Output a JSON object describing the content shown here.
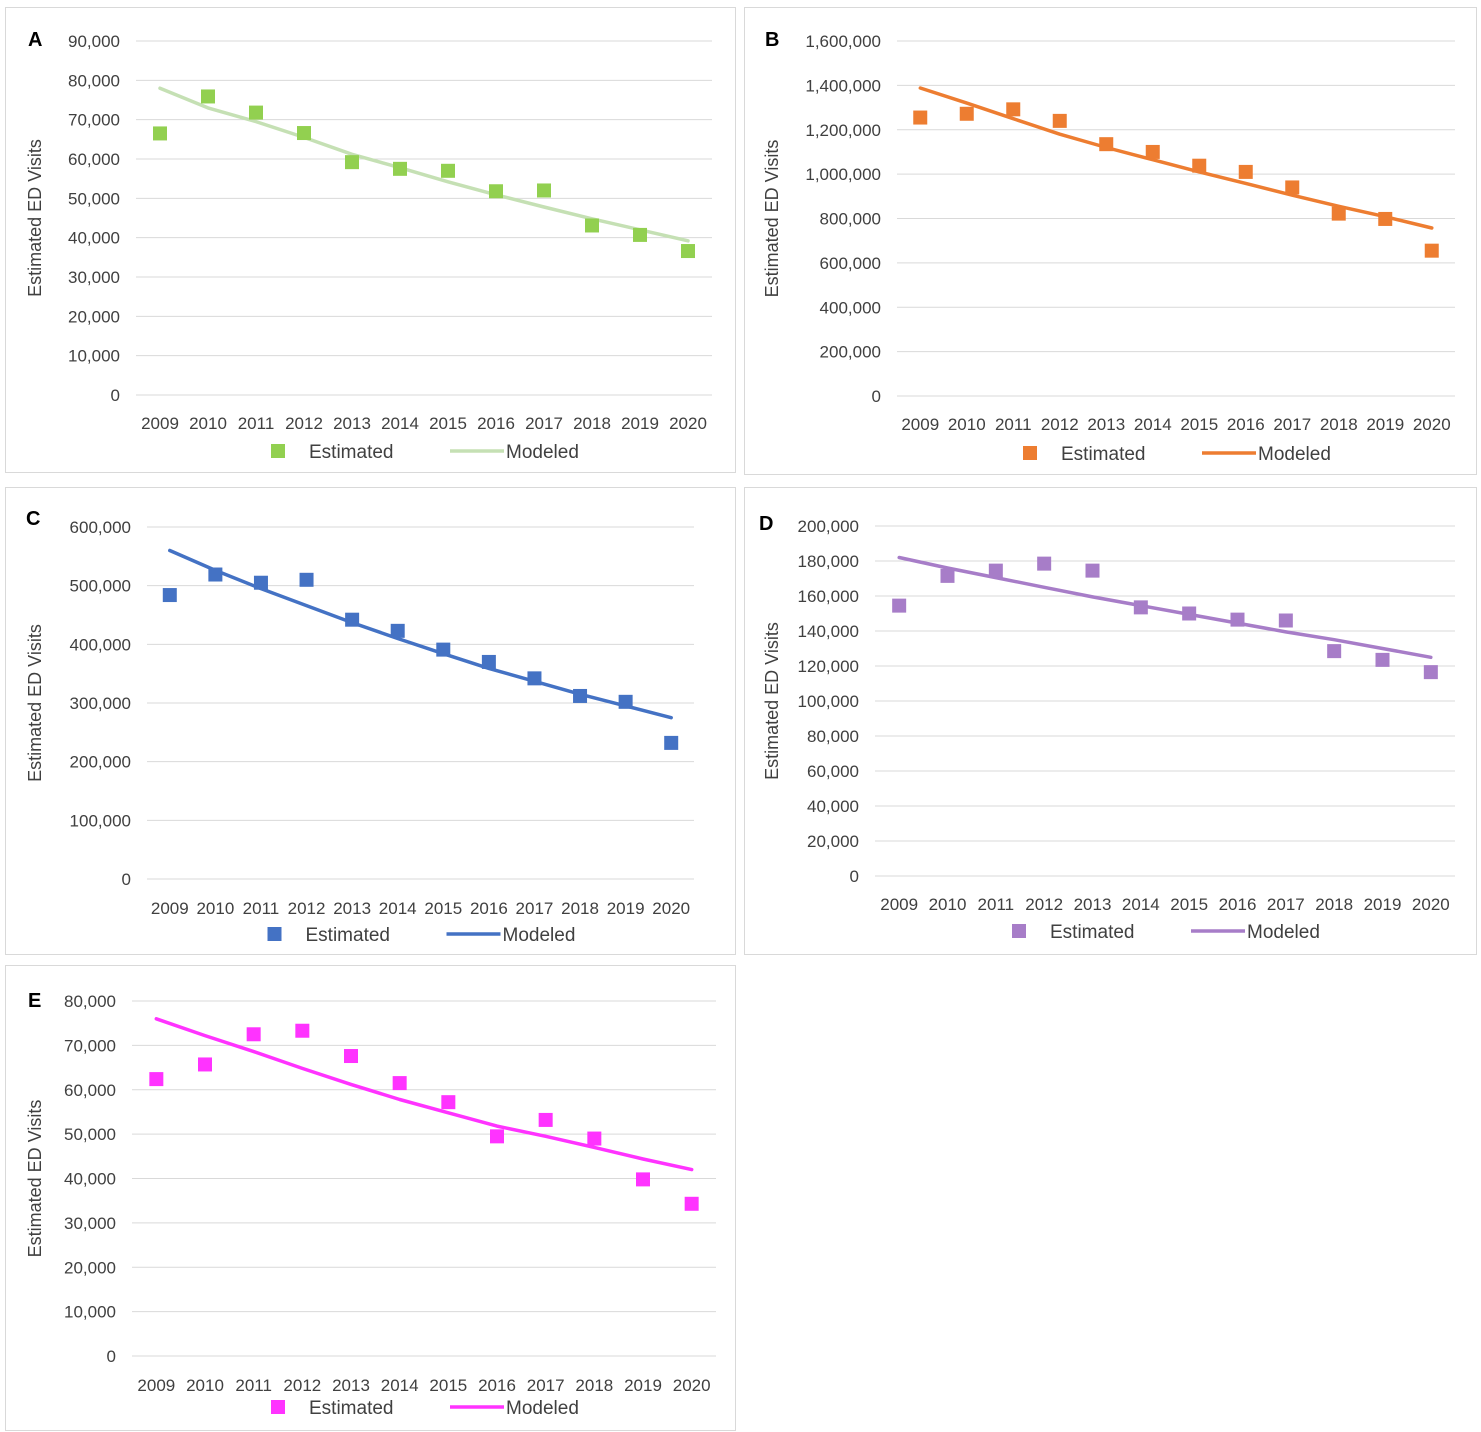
{
  "chart_data": [
    {
      "panel": "A",
      "type": "scatter",
      "color": "#92d050",
      "line_color": "#c5e0b4",
      "x": [
        "2009",
        "2010",
        "2011",
        "2012",
        "2013",
        "2014",
        "2015",
        "2016",
        "2017",
        "2018",
        "2019",
        "2020"
      ],
      "series": [
        {
          "name": "Estimated",
          "style": "markers",
          "values": [
            66500,
            75900,
            71800,
            66600,
            59200,
            57500,
            57000,
            51800,
            52000,
            43100,
            40700,
            36600
          ]
        },
        {
          "name": "Modeled",
          "style": "line",
          "values": [
            78000,
            73000,
            69500,
            65500,
            61200,
            57800,
            54200,
            50900,
            47800,
            44800,
            42000,
            39200
          ]
        }
      ],
      "ylabel": "Estimated ED Visits",
      "ylim": [
        0,
        90000
      ],
      "yticks": [
        "0",
        "10,000",
        "20,000",
        "30,000",
        "40,000",
        "50,000",
        "60,000",
        "70,000",
        "80,000",
        "90,000"
      ],
      "ytick_values": [
        0,
        10000,
        20000,
        30000,
        40000,
        50000,
        60000,
        70000,
        80000,
        90000
      ],
      "grid": true,
      "legend": "bottom"
    },
    {
      "panel": "B",
      "type": "scatter",
      "color": "#ed7d31",
      "line_color": "#ed7d31",
      "x": [
        "2009",
        "2010",
        "2011",
        "2012",
        "2013",
        "2014",
        "2015",
        "2016",
        "2017",
        "2018",
        "2019",
        "2020"
      ],
      "series": [
        {
          "name": "Estimated",
          "style": "markers",
          "values": [
            1255000,
            1272000,
            1292000,
            1240000,
            1135000,
            1100000,
            1038000,
            1010000,
            940000,
            822000,
            798000,
            655000
          ]
        },
        {
          "name": "Modeled",
          "style": "line",
          "values": [
            1388000,
            1320000,
            1250000,
            1180000,
            1120000,
            1065000,
            1010000,
            958000,
            905000,
            855000,
            808000,
            757000
          ]
        }
      ],
      "ylabel": "Estimated ED Visits",
      "ylim": [
        0,
        1600000
      ],
      "yticks": [
        "0",
        "200,000",
        "400,000",
        "600,000",
        "800,000",
        "1,000,000",
        "1,200,000",
        "1,400,000",
        "1,600,000"
      ],
      "ytick_values": [
        0,
        200000,
        400000,
        600000,
        800000,
        1000000,
        1200000,
        1400000,
        1600000
      ],
      "grid": true,
      "legend": "bottom"
    },
    {
      "panel": "C",
      "type": "scatter",
      "color": "#4472c4",
      "line_color": "#4472c4",
      "x": [
        "2009",
        "2010",
        "2011",
        "2012",
        "2013",
        "2014",
        "2015",
        "2016",
        "2017",
        "2018",
        "2019",
        "2020"
      ],
      "series": [
        {
          "name": "Estimated",
          "style": "markers",
          "values": [
            484000,
            519000,
            505000,
            510000,
            442000,
            423000,
            391000,
            370000,
            342000,
            312000,
            302000,
            232000
          ]
        },
        {
          "name": "Modeled",
          "style": "line",
          "values": [
            560000,
            526000,
            495000,
            466000,
            437000,
            410000,
            384000,
            359000,
            337000,
            315000,
            295000,
            275000
          ]
        }
      ],
      "ylabel": "Estimated ED Visits",
      "ylim": [
        0,
        600000
      ],
      "yticks": [
        "0",
        "100,000",
        "200,000",
        "300,000",
        "400,000",
        "500,000",
        "600,000"
      ],
      "ytick_values": [
        0,
        100000,
        200000,
        300000,
        400000,
        500000,
        600000
      ],
      "grid": true,
      "legend": "bottom"
    },
    {
      "panel": "D",
      "type": "scatter",
      "color": "#a77dc8",
      "line_color": "#a77dc8",
      "x": [
        "2009",
        "2010",
        "2011",
        "2012",
        "2013",
        "2014",
        "2015",
        "2016",
        "2017",
        "2018",
        "2019",
        "2020"
      ],
      "series": [
        {
          "name": "Estimated",
          "style": "markers",
          "values": [
            154500,
            171500,
            174500,
            178500,
            174500,
            153500,
            150000,
            146500,
            146000,
            128500,
            123500,
            116500
          ]
        },
        {
          "name": "Modeled",
          "style": "line",
          "values": [
            182000,
            176000,
            170500,
            165000,
            159500,
            154500,
            149500,
            144500,
            139500,
            135000,
            130000,
            125000
          ]
        }
      ],
      "ylabel": "Estimated ED Visits",
      "ylim": [
        0,
        200000
      ],
      "yticks": [
        "0",
        "20,000",
        "40,000",
        "60,000",
        "80,000",
        "100,000",
        "120,000",
        "140,000",
        "160,000",
        "180,000",
        "200,000"
      ],
      "ytick_values": [
        0,
        20000,
        40000,
        60000,
        80000,
        100000,
        120000,
        140000,
        160000,
        180000,
        200000
      ],
      "grid": true,
      "legend": "bottom"
    },
    {
      "panel": "E",
      "type": "scatter",
      "color": "#ff33ff",
      "line_color": "#ff33ff",
      "x": [
        "2009",
        "2010",
        "2011",
        "2012",
        "2013",
        "2014",
        "2015",
        "2016",
        "2017",
        "2018",
        "2019",
        "2020"
      ],
      "series": [
        {
          "name": "Estimated",
          "style": "markers",
          "values": [
            62400,
            65700,
            72500,
            73300,
            67600,
            61500,
            57200,
            49500,
            53200,
            49000,
            39800,
            34300
          ]
        },
        {
          "name": "Modeled",
          "style": "line",
          "values": [
            76000,
            72200,
            68600,
            64800,
            61200,
            57800,
            54800,
            51800,
            49500,
            47000,
            44400,
            42000
          ]
        }
      ],
      "ylabel": "Estimated ED Visits",
      "ylim": [
        0,
        80000
      ],
      "yticks": [
        "0",
        "10,000",
        "20,000",
        "30,000",
        "40,000",
        "50,000",
        "60,000",
        "70,000",
        "80,000"
      ],
      "ytick_values": [
        0,
        10000,
        20000,
        30000,
        40000,
        50000,
        60000,
        70000,
        80000
      ],
      "grid": true,
      "legend": "bottom"
    }
  ]
}
